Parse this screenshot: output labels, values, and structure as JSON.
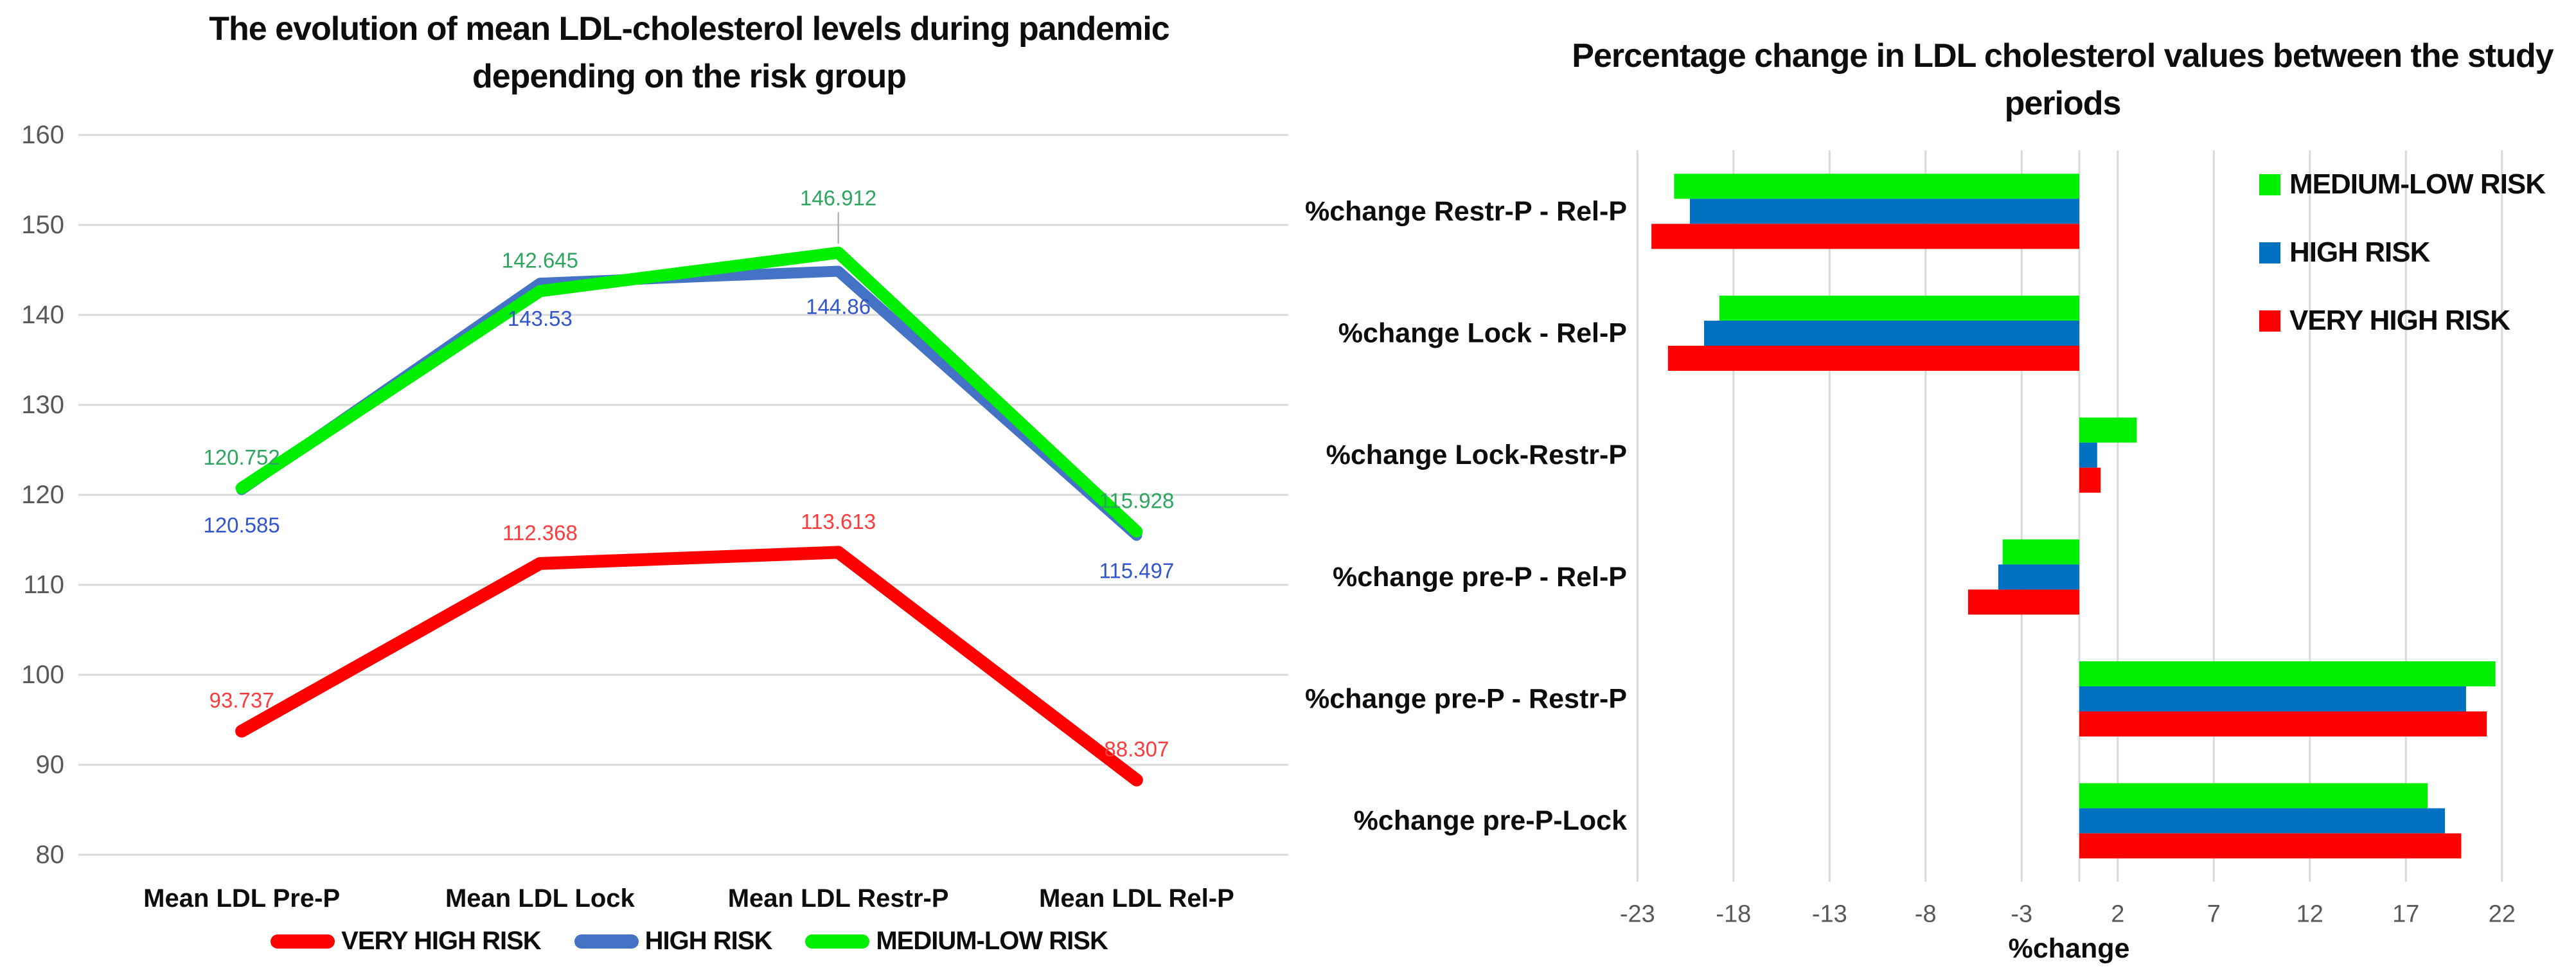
{
  "figure": {
    "background": "#ffffff"
  },
  "colors": {
    "gridline": "#d9d9d9",
    "tick_text": "#595959",
    "leader_line": "#a6a6a6"
  },
  "chart_data": [
    {
      "type": "line",
      "title": "The evolution of mean LDL-cholesterol levels during pandemic depending on the risk group",
      "title_lines": [
        "The evolution of mean LDL-cholesterol levels during pandemic",
        "depending on the risk group"
      ],
      "categories": [
        "Mean LDL  Pre-P",
        "Mean LDL Lock",
        "Mean LDL Restr-P",
        "Mean LDL Rel-P"
      ],
      "y_axis": {
        "min": 80,
        "max": 160,
        "step": 10,
        "tick_labels": [
          "80",
          "90",
          "100",
          "110",
          "120",
          "130",
          "140",
          "150",
          "160"
        ]
      },
      "grid": "horizontal",
      "legend_position": "bottom",
      "series": [
        {
          "name": "VERY HIGH RISK",
          "color": "#ff0000",
          "label_color": "#fb3b3b",
          "values": [
            93.737,
            112.368,
            113.613,
            88.307
          ],
          "labels": [
            "93.737",
            "112.368",
            "113.613",
            "88.307"
          ]
        },
        {
          "name": "HIGH RISK",
          "color": "#4472c4",
          "label_color": "#3355cc",
          "values": [
            120.585,
            143.53,
            144.86,
            115.497
          ],
          "labels": [
            "120.585",
            "143.53",
            "144.86",
            "115.497"
          ]
        },
        {
          "name": "MEDIUM-LOW RISK",
          "color": "#00ee00",
          "label_color": "#2da55f",
          "values": [
            120.752,
            142.645,
            146.912,
            115.928
          ],
          "labels": [
            "120.752",
            "142.645",
            "146.912",
            "115.928"
          ]
        }
      ]
    },
    {
      "type": "bar",
      "orientation": "horizontal",
      "title": "Percentage change in LDL cholesterol values between the study periods",
      "title_lines": [
        "Percentage change in LDL cholesterol values between the study",
        "periods"
      ],
      "categories": [
        "%change Restr-P - Rel-P",
        "%change Lock - Rel-P",
        "%change Lock-Restr-P",
        "%change pre-P - Rel-P",
        "%change pre-P - Restr-P",
        "%change pre-P-Lock"
      ],
      "x_axis": {
        "label": "%change",
        "ticks": [
          -23,
          -18,
          -13,
          -8,
          -3,
          2,
          7,
          12,
          17,
          22
        ],
        "min": -25.5,
        "max": 23.5
      },
      "grid": "vertical",
      "legend_position": "right",
      "series": [
        {
          "name": "MEDIUM-LOW RISK",
          "color": "#00ee00",
          "values": [
            -21.09,
            -18.73,
            2.99,
            -3.99,
            21.66,
            18.13
          ]
        },
        {
          "name": "HIGH RISK",
          "color": "#0070c0",
          "values": [
            -20.27,
            -19.53,
            0.93,
            -4.22,
            20.13,
            19.03
          ]
        },
        {
          "name": "VERY HIGH RISK",
          "color": "#ff0000",
          "values": [
            -22.27,
            -21.41,
            1.11,
            -5.79,
            21.21,
            19.88
          ]
        }
      ]
    }
  ]
}
